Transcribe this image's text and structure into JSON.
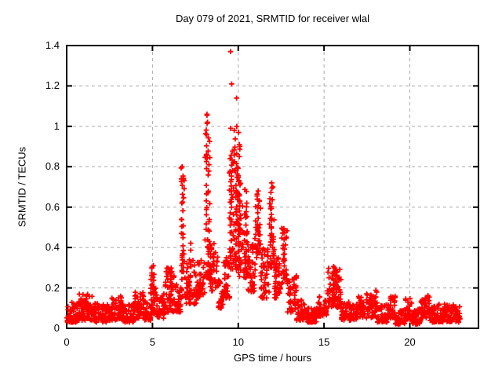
{
  "chart_data": {
    "type": "scatter",
    "title": "Day 079 of 2021, SRMTID for receiver wlal",
    "xlabel": "GPS time / hours",
    "ylabel": "SRMTID / TECUs",
    "xlim": [
      0,
      24
    ],
    "ylim": [
      0,
      1.4
    ],
    "xticks": [
      0,
      5,
      10,
      15,
      20
    ],
    "xticklabels": [
      "0",
      "5",
      "10",
      "15",
      "20"
    ],
    "yticks": [
      0,
      0.2,
      0.4,
      0.6,
      0.8,
      1.0,
      1.2,
      1.4
    ],
    "yticklabels": [
      "0",
      "0.2",
      "0.4",
      "0.6",
      "0.8",
      "1",
      "1.2",
      "1.4"
    ],
    "grid": true,
    "legend": "none",
    "marker": "plus",
    "marker_color": "#ff0000",
    "grid_color": "#a8a8a8",
    "axis_color": "#000000",
    "background": "#ffffff",
    "seed": 20210319,
    "data_end_hour": 22.95,
    "bands": [
      [
        0.0,
        0.7,
        60,
        0.03,
        0.13
      ],
      [
        0.7,
        1.6,
        80,
        0.04,
        0.17
      ],
      [
        1.6,
        2.6,
        85,
        0.03,
        0.13
      ],
      [
        2.6,
        3.2,
        50,
        0.04,
        0.16
      ],
      [
        3.2,
        3.9,
        60,
        0.03,
        0.12
      ],
      [
        3.9,
        4.5,
        55,
        0.05,
        0.18
      ],
      [
        4.5,
        4.9,
        35,
        0.04,
        0.14
      ],
      [
        4.9,
        5.2,
        30,
        0.07,
        0.3
      ],
      [
        5.2,
        5.7,
        40,
        0.05,
        0.18
      ],
      [
        5.7,
        6.3,
        50,
        0.08,
        0.3
      ],
      [
        6.3,
        6.65,
        30,
        0.08,
        0.22
      ],
      [
        6.65,
        6.85,
        25,
        0.15,
        0.75
      ],
      [
        6.85,
        7.6,
        55,
        0.12,
        0.35
      ],
      [
        7.6,
        8.05,
        35,
        0.15,
        0.35
      ],
      [
        8.05,
        8.35,
        30,
        0.25,
        1.0
      ],
      [
        8.3,
        8.8,
        45,
        0.18,
        0.45
      ],
      [
        8.8,
        9.15,
        30,
        0.1,
        0.25
      ],
      [
        9.15,
        9.5,
        35,
        0.15,
        0.35
      ],
      [
        9.5,
        9.75,
        30,
        0.28,
        0.88
      ],
      [
        9.75,
        10.1,
        45,
        0.28,
        0.95
      ],
      [
        10.0,
        10.55,
        60,
        0.25,
        0.72
      ],
      [
        10.55,
        11.0,
        45,
        0.18,
        0.45
      ],
      [
        11.0,
        11.3,
        30,
        0.35,
        0.66
      ],
      [
        11.3,
        11.8,
        45,
        0.15,
        0.4
      ],
      [
        11.8,
        12.1,
        30,
        0.3,
        0.7
      ],
      [
        12.1,
        12.5,
        40,
        0.15,
        0.35
      ],
      [
        12.5,
        12.85,
        30,
        0.22,
        0.5
      ],
      [
        12.85,
        13.4,
        45,
        0.08,
        0.28
      ],
      [
        13.4,
        13.95,
        45,
        0.04,
        0.14
      ],
      [
        13.95,
        14.6,
        50,
        0.03,
        0.1
      ],
      [
        14.6,
        15.15,
        45,
        0.06,
        0.16
      ],
      [
        15.15,
        16.0,
        65,
        0.1,
        0.3
      ],
      [
        16.0,
        16.9,
        70,
        0.04,
        0.13
      ],
      [
        16.9,
        17.35,
        35,
        0.05,
        0.16
      ],
      [
        17.35,
        18.1,
        60,
        0.05,
        0.19
      ],
      [
        18.1,
        18.75,
        50,
        0.03,
        0.12
      ],
      [
        18.75,
        19.15,
        35,
        0.05,
        0.16
      ],
      [
        19.15,
        19.75,
        45,
        0.02,
        0.1
      ],
      [
        19.75,
        20.15,
        35,
        0.04,
        0.15
      ],
      [
        20.15,
        20.65,
        40,
        0.02,
        0.1
      ],
      [
        20.65,
        21.15,
        40,
        0.05,
        0.17
      ],
      [
        21.15,
        22.0,
        65,
        0.03,
        0.12
      ],
      [
        22.0,
        22.95,
        70,
        0.03,
        0.12
      ]
    ],
    "columns": [
      [
        5.02,
        14,
        0.08,
        0.31
      ],
      [
        6.1,
        10,
        0.1,
        0.28
      ],
      [
        6.74,
        16,
        0.15,
        0.8
      ],
      [
        7.2,
        8,
        0.15,
        0.42
      ],
      [
        8.2,
        22,
        0.25,
        1.06
      ],
      [
        9.55,
        14,
        0.3,
        0.85
      ],
      [
        9.9,
        14,
        0.3,
        0.78
      ],
      [
        10.05,
        12,
        0.3,
        0.75
      ],
      [
        10.45,
        8,
        0.35,
        0.62
      ],
      [
        11.15,
        10,
        0.4,
        0.66
      ],
      [
        11.97,
        12,
        0.33,
        0.7
      ],
      [
        12.65,
        10,
        0.25,
        0.5
      ],
      [
        15.55,
        12,
        0.12,
        0.3
      ],
      [
        15.72,
        10,
        0.12,
        0.28
      ]
    ],
    "outliers": [
      [
        9.55,
        1.37
      ],
      [
        9.62,
        1.21
      ],
      [
        9.9,
        1.14
      ],
      [
        8.18,
        1.06
      ],
      [
        8.21,
        1.02
      ],
      [
        9.56,
        0.99
      ],
      [
        9.77,
        0.98
      ],
      [
        9.91,
        1.0
      ],
      [
        10.02,
        0.97
      ],
      [
        9.52,
        0.84
      ],
      [
        9.7,
        0.82
      ],
      [
        8.16,
        0.96
      ],
      [
        6.73,
        0.8
      ],
      [
        10.06,
        0.85
      ],
      [
        11.95,
        0.72
      ],
      [
        12.02,
        0.7
      ],
      [
        11.16,
        0.68
      ],
      [
        12.25,
        0.3
      ],
      [
        5.05,
        0.31
      ],
      [
        15.6,
        0.3
      ]
    ]
  }
}
